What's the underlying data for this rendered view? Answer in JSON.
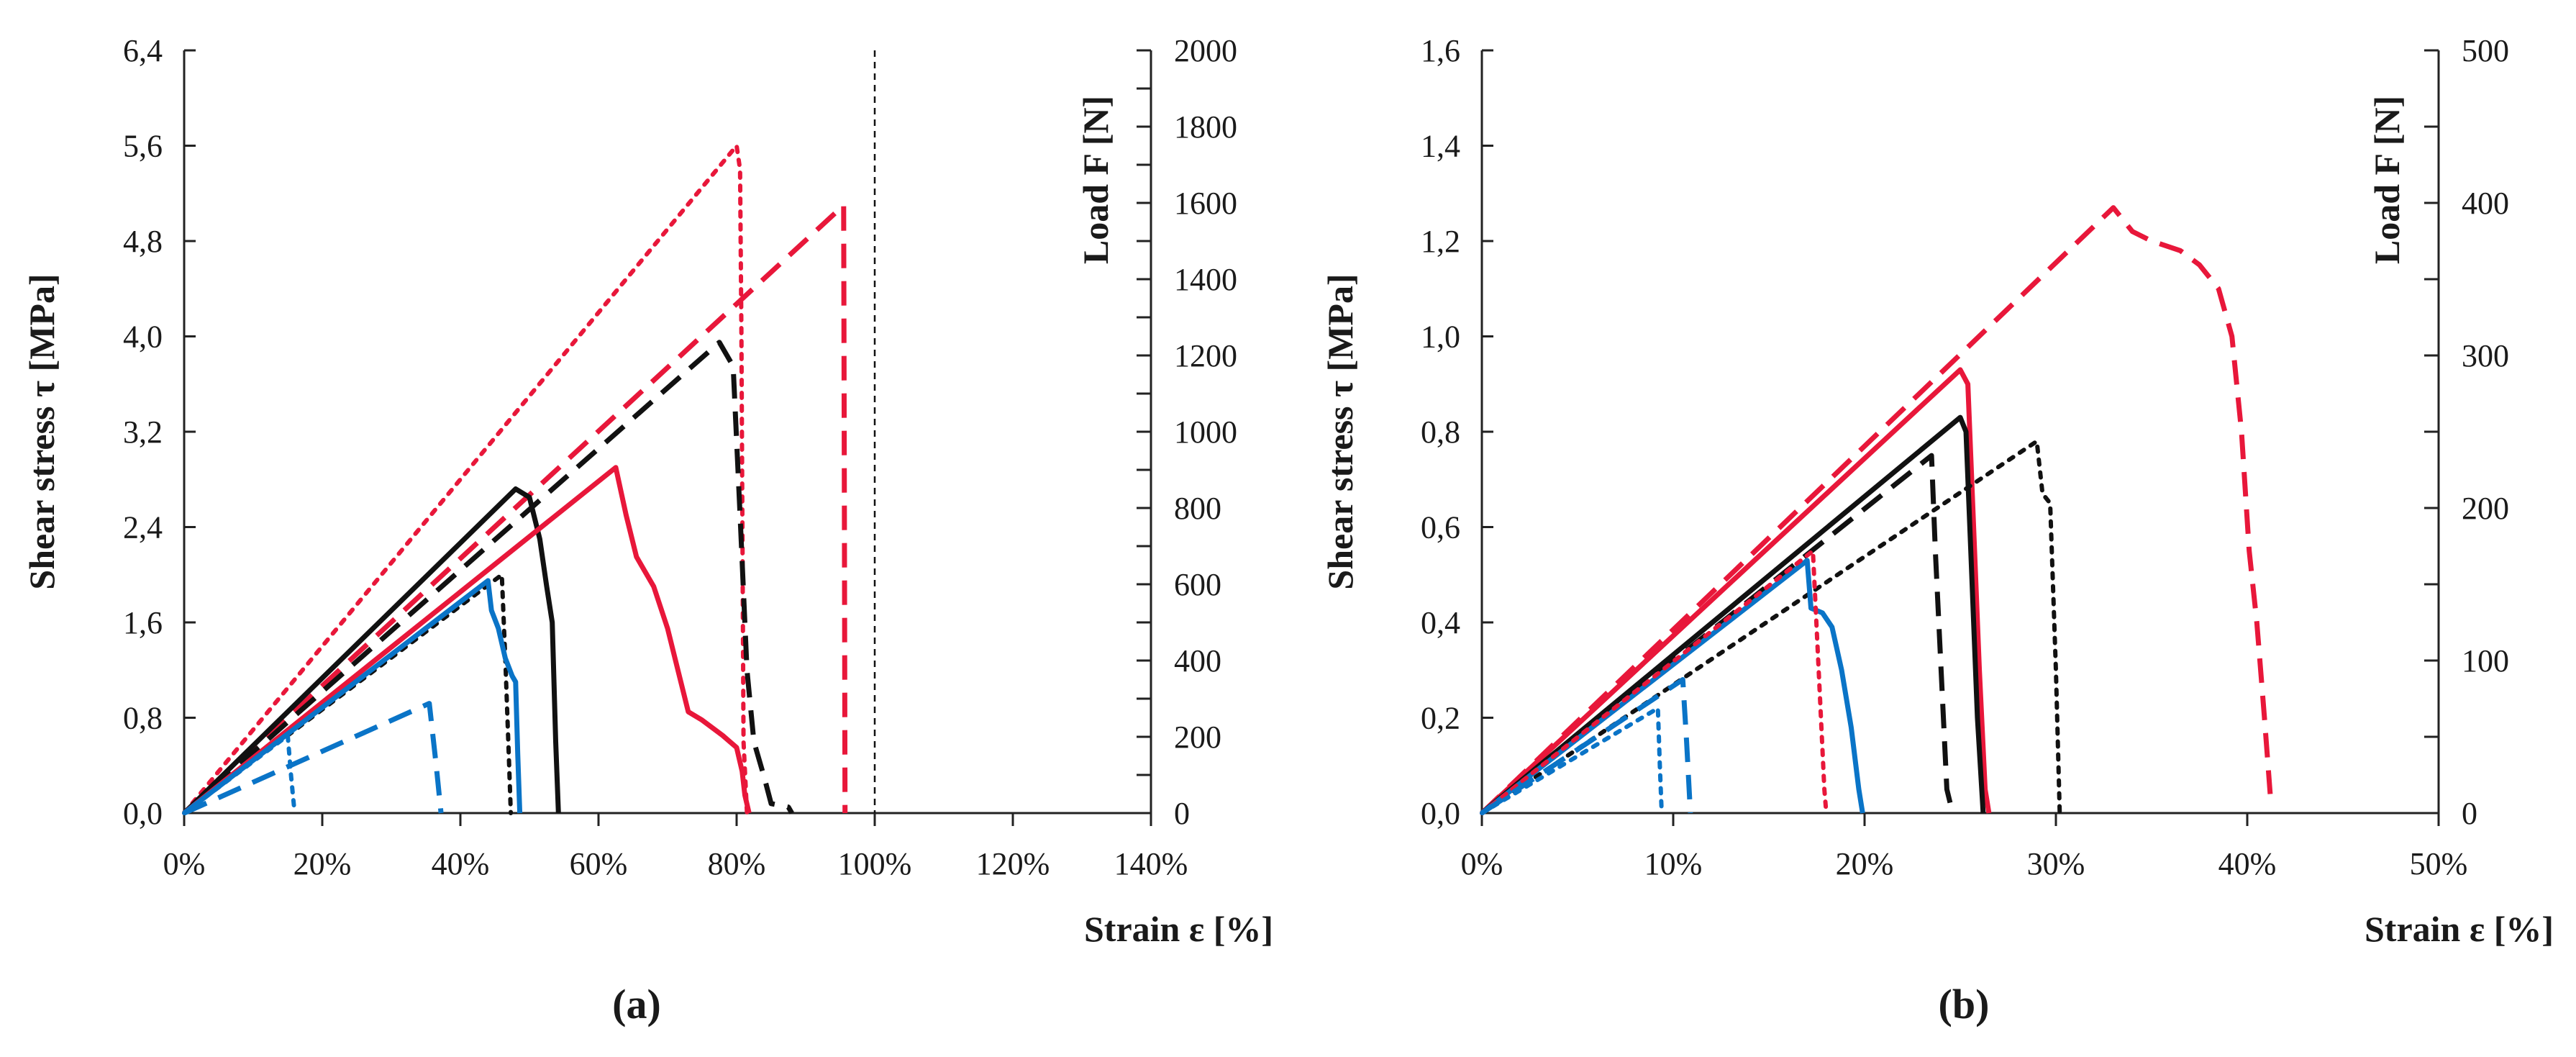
{
  "chart_data": [
    {
      "type": "line",
      "panel_label": "(a)",
      "xlabel": "Strain ε [%]",
      "ylabel": "Shear stress τ [MPa]",
      "y2label": "Load F [N]",
      "xlim": [
        0,
        140
      ],
      "ylim": [
        0,
        6.4
      ],
      "y2lim": [
        0,
        2000
      ],
      "x_ticks": [
        0,
        20,
        40,
        60,
        80,
        100,
        120,
        140
      ],
      "x_tick_labels": [
        "0%",
        "20%",
        "40%",
        "60%",
        "80%",
        "100%",
        "120%",
        "140%"
      ],
      "y_ticks": [
        0,
        0.8,
        1.6,
        2.4,
        3.2,
        4.0,
        4.8,
        5.6,
        6.4
      ],
      "y_tick_labels": [
        "0,0",
        "0,8",
        "1,6",
        "2,4",
        "3,2",
        "4,0",
        "4,8",
        "5,6",
        "6,4"
      ],
      "y2_ticks": [
        0,
        200,
        400,
        600,
        800,
        1000,
        1200,
        1400,
        1600,
        1800,
        2000
      ],
      "y2_tick_labels": [
        "0",
        "200",
        "400",
        "600",
        "800",
        "1000",
        "1200",
        "1400",
        "1600",
        "1800",
        "2000"
      ],
      "reference_line_x": 100,
      "series": [
        {
          "name": "red-dotted",
          "color": "#e8173a",
          "style": "dotted",
          "points": [
            [
              0,
              0
            ],
            [
              80,
              5.6
            ],
            [
              80.5,
              5.4
            ],
            [
              80.7,
              4.0
            ],
            [
              81,
              0.6
            ],
            [
              81.5,
              0
            ]
          ]
        },
        {
          "name": "red-dashed",
          "color": "#e8173a",
          "style": "dashed",
          "points": [
            [
              0,
              0
            ],
            [
              95.5,
              5.1
            ],
            [
              95.6,
              2.6
            ],
            [
              95.7,
              0
            ]
          ]
        },
        {
          "name": "black-dashed",
          "color": "#111111",
          "style": "dashed",
          "points": [
            [
              0,
              0
            ],
            [
              77.5,
              3.95
            ],
            [
              79.5,
              3.75
            ],
            [
              80.5,
              2.5
            ],
            [
              81.5,
              1.2
            ],
            [
              82.5,
              0.6
            ],
            [
              84,
              0.3
            ],
            [
              85,
              0.08
            ],
            [
              87.5,
              0.05
            ],
            [
              88,
              0
            ]
          ]
        },
        {
          "name": "black-solid",
          "color": "#111111",
          "style": "solid",
          "points": [
            [
              0,
              0
            ],
            [
              48,
              2.72
            ],
            [
              50,
              2.65
            ],
            [
              51.5,
              2.3
            ],
            [
              52.5,
              1.9
            ],
            [
              53.3,
              1.6
            ],
            [
              53.8,
              0.6
            ],
            [
              54.2,
              0
            ]
          ]
        },
        {
          "name": "red-solid",
          "color": "#e8173a",
          "style": "solid",
          "points": [
            [
              0,
              0
            ],
            [
              62.5,
              2.9
            ],
            [
              64,
              2.5
            ],
            [
              65.5,
              2.15
            ],
            [
              68,
              1.9
            ],
            [
              70,
              1.55
            ],
            [
              71.5,
              1.2
            ],
            [
              73,
              0.85
            ],
            [
              75,
              0.78
            ],
            [
              78,
              0.65
            ],
            [
              80,
              0.55
            ],
            [
              80.8,
              0.35
            ],
            [
              81.2,
              0.15
            ],
            [
              81.8,
              0
            ]
          ]
        },
        {
          "name": "black-dotted",
          "color": "#111111",
          "style": "dotted",
          "points": [
            [
              0,
              0
            ],
            [
              46,
              2.0
            ],
            [
              46.5,
              1.3
            ],
            [
              47,
              0.5
            ],
            [
              47.3,
              0
            ]
          ]
        },
        {
          "name": "blue-solid",
          "color": "#0a74c7",
          "style": "solid",
          "points": [
            [
              0,
              0
            ],
            [
              44,
              1.95
            ],
            [
              44.5,
              1.7
            ],
            [
              45.5,
              1.55
            ],
            [
              46.5,
              1.3
            ],
            [
              47.5,
              1.15
            ],
            [
              48,
              1.1
            ],
            [
              48.3,
              0.5
            ],
            [
              48.6,
              0
            ]
          ]
        },
        {
          "name": "blue-dashed",
          "color": "#0a74c7",
          "style": "dashed",
          "points": [
            [
              0,
              0
            ],
            [
              35.5,
              0.92
            ],
            [
              36.5,
              0.4
            ],
            [
              37.2,
              0
            ]
          ]
        },
        {
          "name": "blue-dotted",
          "color": "#0a74c7",
          "style": "dotted",
          "points": [
            [
              0,
              0
            ],
            [
              15,
              0.65
            ],
            [
              15.5,
              0.3
            ],
            [
              16,
              0
            ]
          ]
        }
      ]
    },
    {
      "type": "line",
      "panel_label": "(b)",
      "xlabel": "Strain ε [%]",
      "ylabel": "Shear stress τ [MPa]",
      "y2label": "Load F [N]",
      "xlim": [
        0,
        50
      ],
      "ylim": [
        0,
        1.6
      ],
      "y2lim": [
        0,
        500
      ],
      "x_ticks": [
        0,
        10,
        20,
        30,
        40,
        50
      ],
      "x_tick_labels": [
        "0%",
        "10%",
        "20%",
        "30%",
        "40%",
        "50%"
      ],
      "y_ticks": [
        0,
        0.2,
        0.4,
        0.6,
        0.8,
        1.0,
        1.2,
        1.4,
        1.6
      ],
      "y_tick_labels": [
        "0,0",
        "0,2",
        "0,4",
        "0,6",
        "0,8",
        "1,0",
        "1,2",
        "1,4",
        "1,6"
      ],
      "y2_ticks": [
        0,
        100,
        200,
        300,
        400,
        500
      ],
      "y2_tick_labels": [
        "0",
        "100",
        "200",
        "300",
        "400",
        "500"
      ],
      "series": [
        {
          "name": "red-dashed",
          "color": "#e8173a",
          "style": "dashed",
          "points": [
            [
              0,
              0
            ],
            [
              33,
              1.27
            ],
            [
              34,
              1.22
            ],
            [
              35,
              1.2
            ],
            [
              36.5,
              1.18
            ],
            [
              37.5,
              1.15
            ],
            [
              38.5,
              1.1
            ],
            [
              39.2,
              1.0
            ],
            [
              39.7,
              0.8
            ],
            [
              40.1,
              0.55
            ],
            [
              40.5,
              0.4
            ],
            [
              40.9,
              0.2
            ],
            [
              41.2,
              0.04
            ]
          ]
        },
        {
          "name": "red-solid",
          "color": "#e8173a",
          "style": "solid",
          "points": [
            [
              0,
              0
            ],
            [
              25,
              0.93
            ],
            [
              25.4,
              0.9
            ],
            [
              25.7,
              0.6
            ],
            [
              26,
              0.3
            ],
            [
              26.3,
              0.05
            ],
            [
              26.5,
              0
            ]
          ]
        },
        {
          "name": "black-solid",
          "color": "#111111",
          "style": "solid",
          "points": [
            [
              0,
              0
            ],
            [
              25,
              0.83
            ],
            [
              25.3,
              0.8
            ],
            [
              25.6,
              0.5
            ],
            [
              25.9,
              0.2
            ],
            [
              26.2,
              0
            ]
          ]
        },
        {
          "name": "black-dashed",
          "color": "#111111",
          "style": "dashed",
          "points": [
            [
              0,
              0
            ],
            [
              23.5,
              0.75
            ],
            [
              23.7,
              0.55
            ],
            [
              24,
              0.3
            ],
            [
              24.3,
              0.05
            ],
            [
              24.6,
              0
            ]
          ]
        },
        {
          "name": "black-dotted",
          "color": "#111111",
          "style": "dotted",
          "points": [
            [
              0,
              0
            ],
            [
              29,
              0.78
            ],
            [
              29.3,
              0.67
            ],
            [
              29.7,
              0.65
            ],
            [
              30,
              0.3
            ],
            [
              30.2,
              0
            ]
          ]
        },
        {
          "name": "blue-solid",
          "color": "#0a74c7",
          "style": "solid",
          "points": [
            [
              0,
              0
            ],
            [
              17,
              0.53
            ],
            [
              17.2,
              0.43
            ],
            [
              17.8,
              0.42
            ],
            [
              18.3,
              0.39
            ],
            [
              18.8,
              0.3
            ],
            [
              19.3,
              0.18
            ],
            [
              19.7,
              0.05
            ],
            [
              19.9,
              0
            ]
          ]
        },
        {
          "name": "red-dotted",
          "color": "#e8173a",
          "style": "dotted",
          "points": [
            [
              0,
              0
            ],
            [
              17.3,
              0.55
            ],
            [
              17.6,
              0.3
            ],
            [
              17.9,
              0.05
            ],
            [
              18,
              0
            ]
          ]
        },
        {
          "name": "blue-dashed",
          "color": "#0a74c7",
          "style": "dashed",
          "points": [
            [
              0,
              0
            ],
            [
              10.5,
              0.28
            ],
            [
              10.7,
              0.15
            ],
            [
              10.9,
              0
            ]
          ]
        },
        {
          "name": "blue-dotted",
          "color": "#0a74c7",
          "style": "dotted",
          "points": [
            [
              0,
              0
            ],
            [
              9.2,
              0.22
            ],
            [
              9.3,
              0.1
            ],
            [
              9.4,
              0
            ]
          ]
        }
      ]
    }
  ]
}
